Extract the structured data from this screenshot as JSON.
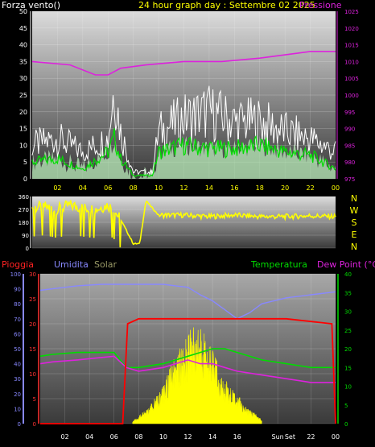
{
  "chart_data": [
    {
      "type": "line",
      "title": "24 hour graph day : Settembre 02 2025",
      "left_label": "Forza vento()",
      "right_label": "Pressione",
      "ylim_left": [
        0,
        50
      ],
      "ylim_right": [
        975,
        1025
      ],
      "y_ticks_left": [
        "50",
        "45",
        "40",
        "35",
        "30",
        "25",
        "20",
        "15",
        "10",
        "5",
        "0"
      ],
      "y_ticks_right": [
        "1025",
        "1020",
        "1015",
        "1010",
        "1005",
        "1000",
        "995",
        "990",
        "985",
        "980",
        "975"
      ],
      "x_ticks": [
        "02",
        "04",
        "06",
        "08",
        "10",
        "12",
        "14",
        "16",
        "18",
        "20",
        "22",
        "00"
      ],
      "colors": {
        "wind_gust": "#ffffff",
        "wind_avg": "#00dd00",
        "pressure": "#dd22dd",
        "axis_left": "#ffffff",
        "axis_right": "#dd22dd"
      },
      "series": [
        {
          "role": "pressure",
          "x": [
            0,
            3,
            5,
            6,
            7,
            9,
            12,
            15,
            18,
            20,
            22,
            24
          ],
          "values": [
            1010,
            1009,
            1006,
            1006,
            1008,
            1009,
            1010,
            1010,
            1011,
            1012,
            1013,
            1013
          ]
        },
        {
          "role": "wind_gust",
          "x": [
            0,
            2,
            4,
            6,
            6.5,
            7,
            8,
            9.5,
            10,
            12,
            14,
            16,
            18,
            20,
            22,
            24
          ],
          "values": [
            10,
            12,
            8,
            12,
            28,
            14,
            2,
            2,
            14,
            18,
            20,
            17,
            17,
            14,
            12,
            8
          ]
        },
        {
          "role": "wind_avg",
          "x": [
            0,
            2,
            4,
            6,
            6.5,
            7,
            8,
            9.5,
            10,
            12,
            14,
            16,
            18,
            20,
            22,
            24
          ],
          "values": [
            5,
            6,
            3,
            8,
            12,
            6,
            1,
            1,
            8,
            10,
            9,
            9,
            10,
            8,
            7,
            3
          ]
        }
      ]
    },
    {
      "type": "line",
      "y_ticks": [
        "360",
        "270",
        "180",
        "90",
        "0"
      ],
      "ylim": [
        0,
        360
      ],
      "compass": [
        "N",
        "W",
        "S",
        "E",
        "N"
      ],
      "x_ticks": [
        "02",
        "04",
        "06",
        "08",
        "10",
        "12",
        "14",
        "16",
        "18",
        "20",
        "22",
        "00"
      ],
      "colors": {
        "direction": "#ffff00",
        "axis": "#ffffff",
        "compass": "#ffff00"
      },
      "series": [
        {
          "role": "wind_direction",
          "x": [
            0,
            1,
            2,
            3,
            4,
            5,
            6,
            6.5,
            7,
            8,
            8.5,
            9,
            10,
            12,
            14,
            16,
            18,
            20,
            22,
            24
          ],
          "values": [
            280,
            290,
            270,
            300,
            280,
            270,
            300,
            260,
            200,
            30,
            30,
            330,
            230,
            230,
            220,
            230,
            220,
            220,
            225,
            220
          ]
        }
      ]
    },
    {
      "type": "line",
      "legend": [
        "Pioggia",
        "Umidita",
        "Solar",
        "Temperatura",
        "Dew Point (°C)"
      ],
      "ylim_humidity": [
        0,
        100
      ],
      "ylim_rain": [
        0,
        30
      ],
      "ylim_temp": [
        0,
        40
      ],
      "y_ticks_humidity": [
        "100",
        "90",
        "80",
        "70",
        "60",
        "50",
        "40",
        "30",
        "20",
        "10",
        "0"
      ],
      "y_ticks_rain": [
        "30",
        "25",
        "20",
        "15",
        "10",
        "5",
        "0"
      ],
      "y_ticks_temp": [
        "40",
        "35",
        "30",
        "25",
        "20",
        "15",
        "10",
        "5",
        "0"
      ],
      "x_ticks": [
        "02",
        "04",
        "06",
        "08",
        "10",
        "12",
        "14",
        "16",
        "Sun",
        "22",
        "00"
      ],
      "x_tick_extra": "Set",
      "colors": {
        "rain": "#ff0000",
        "humidity": "#8888ff",
        "solar": "#ffff00",
        "temperature": "#00dd00",
        "dew_point": "#dd22dd",
        "axis_humidity": "#8888ff",
        "axis_rain": "#ff3333",
        "axis_temp": "#00dd00"
      },
      "series": [
        {
          "role": "humidity",
          "x": [
            0,
            1,
            3,
            5,
            7,
            9,
            10,
            11,
            12,
            13,
            14,
            15,
            16,
            17,
            18,
            20,
            22,
            24
          ],
          "values": [
            89,
            90,
            92,
            93,
            93,
            93,
            93,
            92,
            91,
            86,
            82,
            76,
            70,
            74,
            80,
            84,
            86,
            88
          ]
        },
        {
          "role": "rain",
          "x": [
            0,
            6.7,
            7.1,
            8,
            10,
            12,
            16,
            20,
            23.7,
            24
          ],
          "values": [
            0,
            0,
            20,
            21,
            21,
            21,
            21,
            21,
            20,
            0
          ]
        },
        {
          "role": "temperature",
          "x": [
            0,
            1,
            3,
            6,
            7,
            8,
            10,
            12,
            13,
            14,
            15,
            16,
            18,
            20,
            22,
            24
          ],
          "values": [
            18,
            18.5,
            19,
            19,
            15,
            15,
            16,
            18,
            19,
            20,
            20,
            19,
            17,
            16,
            15,
            15
          ]
        },
        {
          "role": "dew_point",
          "x": [
            0,
            1,
            3,
            6,
            7,
            8,
            10,
            12,
            13,
            14,
            15,
            16,
            18,
            20,
            22,
            24
          ],
          "values": [
            16,
            16.5,
            17,
            18,
            15,
            14,
            15,
            17,
            16,
            16,
            15,
            14,
            13,
            12,
            11,
            11
          ]
        },
        {
          "role": "solar_peak",
          "x": [
            7.5,
            8,
            9,
            10,
            11,
            12,
            12.5,
            13,
            13.5,
            14,
            15,
            16,
            17,
            18
          ],
          "values": [
            0.5,
            1.5,
            4,
            8,
            14,
            18,
            20,
            19,
            20,
            15,
            9,
            6,
            3,
            1
          ]
        }
      ]
    }
  ]
}
